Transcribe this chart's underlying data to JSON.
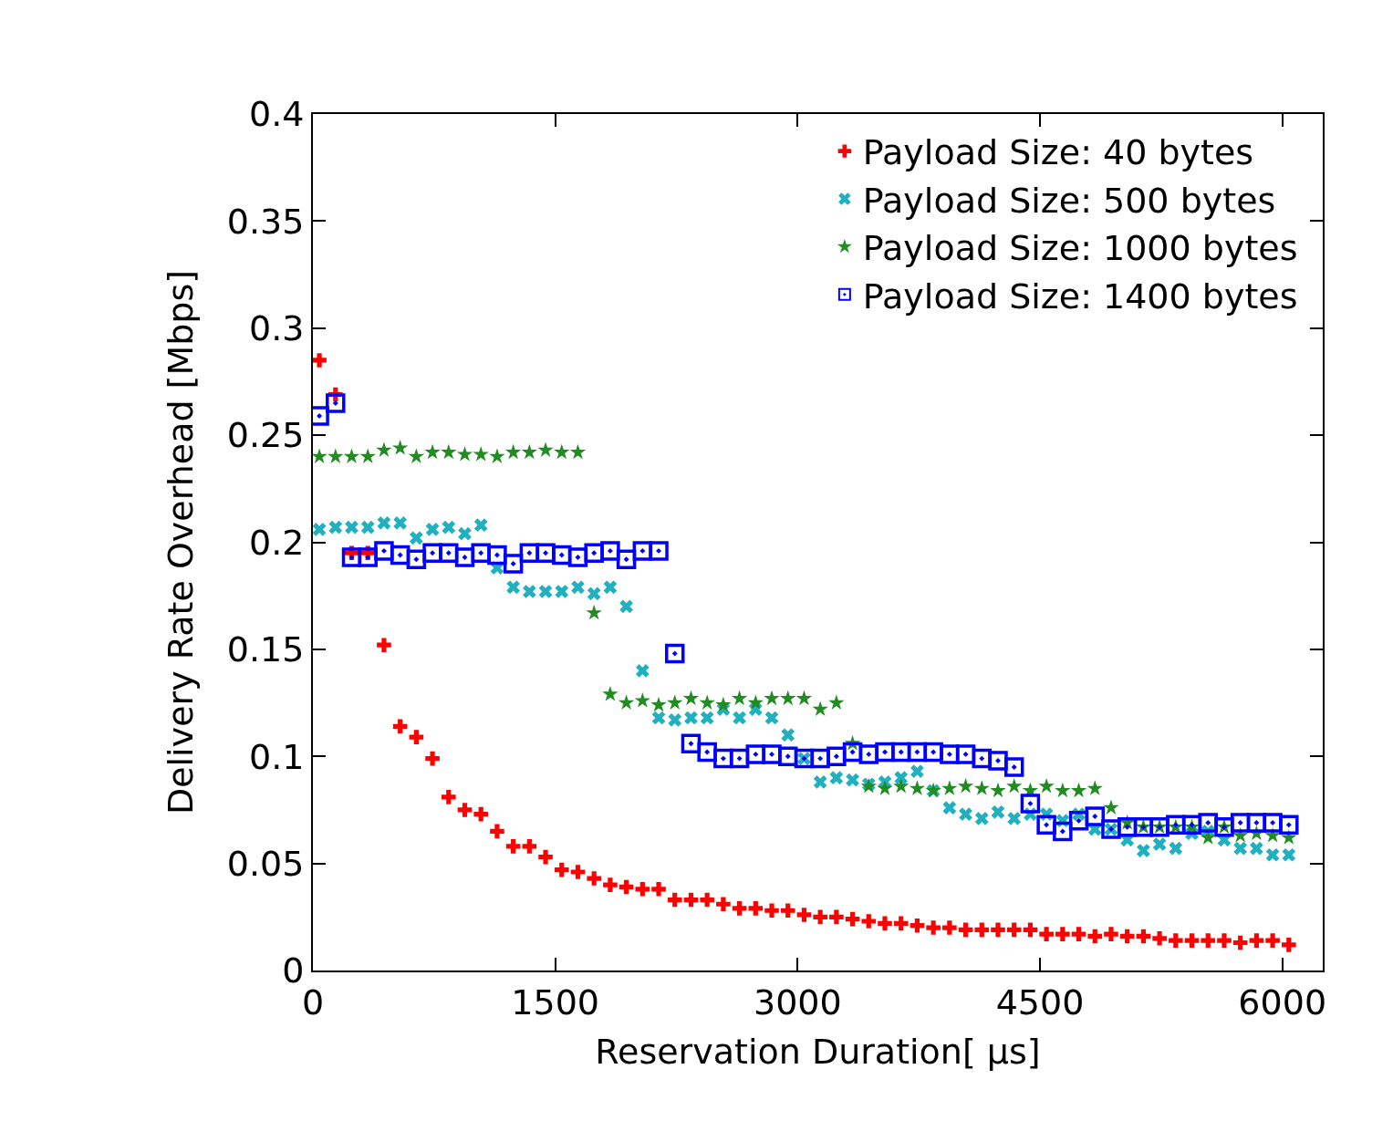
{
  "chart_data": {
    "type": "scatter",
    "xlabel": "Reservation Duration[ µs]",
    "ylabel": "Delivery Rate Overhead [Mbps]",
    "x": [
      40,
      140,
      240,
      340,
      440,
      540,
      640,
      740,
      840,
      940,
      1040,
      1140,
      1240,
      1340,
      1440,
      1540,
      1640,
      1740,
      1840,
      1940,
      2040,
      2140,
      2240,
      2340,
      2440,
      2540,
      2640,
      2740,
      2840,
      2940,
      3040,
      3140,
      3240,
      3340,
      3440,
      3540,
      3640,
      3740,
      3840,
      3940,
      4040,
      4140,
      4240,
      4340,
      4440,
      4540,
      4640,
      4740,
      4840,
      4940,
      5040,
      5140,
      5240,
      5340,
      5440,
      5540,
      5640,
      5740,
      5840,
      5940,
      6040
    ],
    "series": [
      {
        "name": "Payload Size: 40 bytes",
        "color": "#ff0000",
        "marker": "cross",
        "values": [
          0.285,
          0.269,
          0.195,
          0.195,
          0.152,
          0.114,
          0.109,
          0.099,
          0.081,
          0.075,
          0.073,
          0.065,
          0.058,
          0.058,
          0.053,
          0.047,
          0.046,
          0.043,
          0.04,
          0.039,
          0.038,
          0.038,
          0.033,
          0.033,
          0.033,
          0.031,
          0.029,
          0.029,
          0.028,
          0.028,
          0.026,
          0.025,
          0.025,
          0.024,
          0.023,
          0.022,
          0.022,
          0.021,
          0.02,
          0.02,
          0.019,
          0.019,
          0.019,
          0.019,
          0.019,
          0.017,
          0.017,
          0.017,
          0.016,
          0.017,
          0.016,
          0.016,
          0.015,
          0.014,
          0.014,
          0.014,
          0.014,
          0.013,
          0.014,
          0.014,
          0.012
        ]
      },
      {
        "name": "Payload Size: 500 bytes",
        "color": "#20b0c0",
        "marker": "x",
        "values": [
          0.206,
          0.207,
          0.207,
          0.207,
          0.209,
          0.209,
          0.202,
          0.206,
          0.207,
          0.204,
          0.208,
          0.188,
          0.179,
          0.177,
          0.177,
          0.177,
          0.179,
          0.176,
          0.179,
          0.17,
          0.14,
          0.118,
          0.117,
          0.118,
          0.118,
          0.122,
          0.118,
          0.122,
          0.118,
          0.11,
          0.099,
          0.088,
          0.09,
          0.089,
          0.087,
          0.088,
          0.09,
          0.093,
          0.084,
          0.076,
          0.073,
          0.071,
          0.074,
          0.071,
          0.073,
          0.073,
          0.07,
          0.073,
          0.066,
          0.066,
          0.061,
          0.056,
          0.059,
          0.057,
          0.064,
          0.065,
          0.061,
          0.057,
          0.057,
          0.054,
          0.054
        ]
      },
      {
        "name": "Payload Size: 1000 bytes",
        "color": "#228b22",
        "marker": "star",
        "values": [
          0.24,
          0.24,
          0.24,
          0.24,
          0.243,
          0.244,
          0.24,
          0.242,
          0.242,
          0.241,
          0.241,
          0.24,
          0.242,
          0.242,
          0.243,
          0.242,
          0.242,
          0.167,
          0.129,
          0.125,
          0.126,
          0.124,
          0.125,
          0.127,
          0.125,
          0.124,
          0.127,
          0.125,
          0.127,
          0.127,
          0.127,
          0.122,
          0.125,
          0.106,
          0.086,
          0.085,
          0.086,
          0.085,
          0.084,
          0.085,
          0.086,
          0.085,
          0.084,
          0.086,
          0.084,
          0.086,
          0.084,
          0.084,
          0.085,
          0.076,
          0.069,
          0.067,
          0.067,
          0.067,
          0.067,
          0.062,
          0.067,
          0.063,
          0.064,
          0.063,
          0.062
        ]
      },
      {
        "name": "Payload Size: 1400 bytes",
        "color": "#0000ff",
        "marker": "square",
        "values": [
          0.259,
          0.265,
          0.193,
          0.193,
          0.196,
          0.194,
          0.192,
          0.195,
          0.195,
          0.193,
          0.195,
          0.194,
          0.19,
          0.195,
          0.195,
          0.194,
          0.193,
          0.195,
          0.196,
          0.192,
          0.196,
          0.196,
          0.148,
          0.106,
          0.102,
          0.099,
          0.099,
          0.101,
          0.101,
          0.1,
          0.099,
          0.099,
          0.1,
          0.102,
          0.101,
          0.102,
          0.102,
          0.102,
          0.102,
          0.101,
          0.101,
          0.099,
          0.098,
          0.095,
          0.078,
          0.068,
          0.065,
          0.07,
          0.072,
          0.066,
          0.067,
          0.067,
          0.067,
          0.068,
          0.068,
          0.069,
          0.067,
          0.069,
          0.069,
          0.069,
          0.068
        ]
      }
    ],
    "xlim": [
      0,
      6250
    ],
    "xticks": [
      0,
      1500,
      3000,
      4500,
      6000
    ],
    "ylim": [
      0,
      0.4
    ],
    "yticks": [
      0,
      0.05,
      0.1,
      0.15,
      0.2,
      0.25,
      0.3,
      0.35,
      0.4
    ],
    "legend": "top right"
  }
}
